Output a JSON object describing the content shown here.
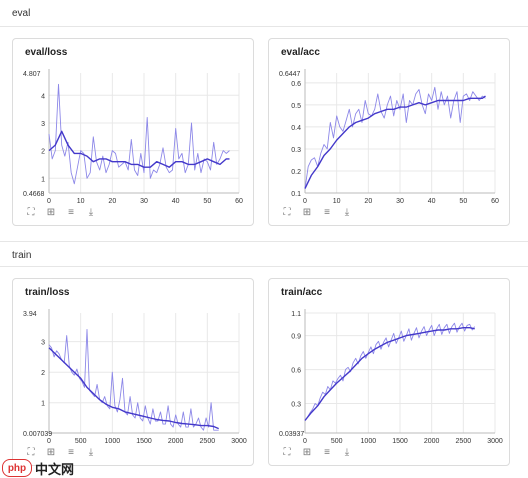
{
  "sections": [
    {
      "title": "eval"
    },
    {
      "title": "train"
    }
  ],
  "toolbar_icons": [
    "expand-icon",
    "fit-icon",
    "filter-icon",
    "download-icon"
  ],
  "watermark": {
    "logo_text": "php",
    "text": "中文网"
  },
  "colors": {
    "line": "#4338ca",
    "line_light": "#8d88e8",
    "grid": "#e8e8e8",
    "axis_text": "#333"
  },
  "charts": [
    {
      "title": "eval/loss",
      "chart_data": {
        "type": "line",
        "title": "eval/loss",
        "xlim": [
          0,
          60
        ],
        "ylim": [
          0.4668,
          4.807
        ],
        "x_ticks": [
          0,
          10,
          20,
          30,
          40,
          50,
          60
        ],
        "y_ticks": [
          1,
          2,
          3,
          4
        ],
        "y_extent_labels": [
          "0.4668",
          "4.807"
        ],
        "series": [
          {
            "role": "raw",
            "x": [
              0,
              1,
              2,
              3,
              4,
              5,
              6,
              7,
              8,
              9,
              10,
              11,
              12,
              13,
              14,
              15,
              16,
              17,
              18,
              19,
              20,
              21,
              22,
              23,
              24,
              25,
              26,
              27,
              28,
              29,
              30,
              31,
              32,
              33,
              34,
              35,
              36,
              37,
              38,
              39,
              40,
              41,
              42,
              43,
              43,
              44,
              45,
              46,
              47,
              48,
              49,
              50,
              51,
              52,
              53,
              54,
              55,
              56,
              57
            ],
            "y": [
              2.6,
              1.7,
              2.0,
              4.4,
              2.2,
              1.8,
              2.3,
              1.2,
              0.8,
              1.4,
              2.0,
              1.9,
              1.0,
              1.2,
              2.5,
              1.6,
              1.3,
              1.8,
              1.2,
              1.5,
              2.0,
              1.9,
              1.4,
              1.5,
              1.6,
              1.3,
              2.4,
              1.3,
              1.1,
              1.9,
              1.2,
              3.2,
              1.0,
              1.3,
              1.2,
              1.5,
              2.1,
              1.4,
              1.2,
              1.3,
              2.8,
              1.7,
              1.9,
              1.2,
              1.2,
              1.5,
              3.0,
              1.3,
              1.9,
              1.2,
              1.7,
              1.6,
              1.3,
              2.3,
              1.5,
              1.7,
              2.0,
              1.9,
              2.0
            ]
          },
          {
            "role": "smoothed",
            "x": [
              0,
              2,
              4,
              6,
              8,
              10,
              12,
              14,
              16,
              18,
              20,
              22,
              24,
              26,
              28,
              30,
              32,
              34,
              36,
              38,
              40,
              42,
              44,
              46,
              48,
              50,
              52,
              54,
              56,
              57
            ],
            "y": [
              2.0,
              2.2,
              2.7,
              2.2,
              1.9,
              1.9,
              1.8,
              1.6,
              1.7,
              1.7,
              1.6,
              1.6,
              1.6,
              1.5,
              1.5,
              1.4,
              1.4,
              1.6,
              1.5,
              1.4,
              1.6,
              1.6,
              1.5,
              1.5,
              1.6,
              1.7,
              1.6,
              1.5,
              1.7,
              1.7
            ]
          }
        ]
      }
    },
    {
      "title": "eval/acc",
      "chart_data": {
        "type": "line",
        "title": "eval/acc",
        "xlim": [
          0,
          60
        ],
        "ylim": [
          0.1,
          0.6447
        ],
        "x_ticks": [
          0,
          10,
          20,
          30,
          40,
          50,
          60
        ],
        "y_ticks": [
          0.1,
          0.2,
          0.3,
          0.4,
          0.5,
          0.6
        ],
        "y_extent_labels": [
          "0.6447"
        ],
        "series": [
          {
            "role": "raw",
            "x": [
              0,
              1,
              2,
              3,
              4,
              5,
              6,
              7,
              8,
              9,
              10,
              11,
              12,
              13,
              14,
              15,
              16,
              17,
              18,
              19,
              20,
              21,
              22,
              23,
              24,
              25,
              26,
              27,
              28,
              29,
              30,
              31,
              32,
              33,
              34,
              35,
              36,
              37,
              38,
              39,
              40,
              41,
              42,
              43,
              44,
              45,
              46,
              47,
              48,
              49,
              50,
              51,
              52,
              53,
              54,
              55,
              56,
              57
            ],
            "y": [
              0.12,
              0.22,
              0.25,
              0.26,
              0.22,
              0.28,
              0.32,
              0.3,
              0.42,
              0.35,
              0.45,
              0.4,
              0.38,
              0.43,
              0.48,
              0.4,
              0.46,
              0.48,
              0.42,
              0.52,
              0.46,
              0.45,
              0.48,
              0.55,
              0.47,
              0.44,
              0.5,
              0.54,
              0.45,
              0.52,
              0.48,
              0.55,
              0.42,
              0.52,
              0.5,
              0.55,
              0.57,
              0.5,
              0.46,
              0.55,
              0.52,
              0.58,
              0.48,
              0.56,
              0.5,
              0.54,
              0.44,
              0.52,
              0.56,
              0.42,
              0.54,
              0.55,
              0.52,
              0.56,
              0.54,
              0.52,
              0.54,
              0.53
            ]
          },
          {
            "role": "smoothed",
            "x": [
              0,
              2,
              4,
              6,
              8,
              10,
              12,
              14,
              16,
              18,
              20,
              22,
              24,
              26,
              28,
              30,
              32,
              34,
              36,
              38,
              40,
              42,
              44,
              46,
              48,
              50,
              52,
              54,
              56,
              57
            ],
            "y": [
              0.12,
              0.18,
              0.22,
              0.27,
              0.3,
              0.34,
              0.37,
              0.4,
              0.42,
              0.43,
              0.44,
              0.46,
              0.47,
              0.48,
              0.48,
              0.49,
              0.49,
              0.5,
              0.51,
              0.5,
              0.51,
              0.52,
              0.52,
              0.52,
              0.52,
              0.52,
              0.53,
              0.53,
              0.53,
              0.54
            ]
          }
        ]
      }
    },
    {
      "title": "train/loss",
      "chart_data": {
        "type": "line",
        "title": "train/loss",
        "xlim": [
          0,
          3000
        ],
        "ylim": [
          0.007039,
          3.94
        ],
        "x_ticks": [
          0,
          500,
          1000,
          1500,
          2000,
          2500,
          3000
        ],
        "y_ticks": [
          1,
          2,
          3
        ],
        "y_extent_labels": [
          "0.007039",
          "3.94"
        ],
        "series": [
          {
            "role": "raw",
            "x": [
              0,
              40,
              80,
              120,
              160,
              200,
              240,
              280,
              320,
              360,
              400,
              440,
              480,
              520,
              560,
              600,
              640,
              680,
              720,
              760,
              800,
              840,
              880,
              920,
              960,
              1000,
              1040,
              1080,
              1120,
              1160,
              1200,
              1240,
              1280,
              1320,
              1360,
              1400,
              1440,
              1480,
              1520,
              1560,
              1600,
              1640,
              1680,
              1720,
              1760,
              1800,
              1840,
              1880,
              1920,
              1960,
              2000,
              2040,
              2080,
              2120,
              2160,
              2200,
              2240,
              2280,
              2320,
              2360,
              2400,
              2440,
              2480,
              2520,
              2560,
              2600,
              2640,
              2680
            ],
            "y": [
              2.9,
              2.8,
              2.5,
              2.7,
              2.6,
              2.4,
              2.3,
              3.2,
              2.2,
              2.0,
              1.9,
              2.1,
              1.8,
              1.7,
              1.5,
              3.4,
              1.4,
              1.3,
              1.2,
              1.6,
              1.1,
              1.0,
              1.2,
              0.9,
              0.8,
              2.0,
              0.9,
              0.7,
              1.1,
              1.8,
              0.7,
              0.6,
              1.2,
              0.6,
              0.5,
              1.0,
              0.5,
              0.4,
              0.9,
              0.5,
              0.3,
              0.8,
              0.4,
              0.4,
              0.7,
              0.3,
              0.3,
              0.9,
              0.3,
              0.2,
              0.6,
              0.3,
              0.2,
              0.7,
              0.2,
              0.2,
              0.8,
              0.2,
              0.3,
              0.5,
              0.2,
              0.1,
              0.5,
              0.2,
              1.0,
              0.1,
              0.1,
              0.1
            ]
          },
          {
            "role": "smoothed",
            "x": [
              0,
              100,
              200,
              300,
              400,
              500,
              600,
              700,
              800,
              900,
              1000,
              1100,
              1200,
              1300,
              1400,
              1500,
              1600,
              1700,
              1800,
              1900,
              2000,
              2100,
              2200,
              2300,
              2400,
              2500,
              2600,
              2680
            ],
            "y": [
              2.8,
              2.6,
              2.4,
              2.2,
              2.0,
              1.8,
              1.5,
              1.3,
              1.1,
              0.95,
              0.85,
              0.8,
              0.7,
              0.65,
              0.6,
              0.55,
              0.5,
              0.45,
              0.42,
              0.4,
              0.35,
              0.32,
              0.3,
              0.28,
              0.25,
              0.25,
              0.22,
              0.15
            ]
          }
        ]
      }
    },
    {
      "title": "train/acc",
      "chart_data": {
        "type": "line",
        "title": "train/acc",
        "xlim": [
          0,
          3000
        ],
        "ylim": [
          0.03937,
          1.1
        ],
        "x_ticks": [
          0,
          500,
          1000,
          1500,
          2000,
          2500,
          3000
        ],
        "y_ticks": [
          0.3,
          0.6,
          0.9,
          1.1
        ],
        "y_extent_labels": [
          "0.03937"
        ],
        "series": [
          {
            "role": "raw",
            "x": [
              0,
              40,
              80,
              120,
              160,
              200,
              240,
              280,
              320,
              360,
              400,
              440,
              480,
              520,
              560,
              600,
              640,
              680,
              720,
              760,
              800,
              840,
              880,
              920,
              960,
              1000,
              1040,
              1080,
              1120,
              1160,
              1200,
              1240,
              1280,
              1320,
              1360,
              1400,
              1440,
              1480,
              1520,
              1560,
              1600,
              1640,
              1680,
              1720,
              1760,
              1800,
              1840,
              1880,
              1920,
              1960,
              2000,
              2040,
              2080,
              2120,
              2160,
              2200,
              2240,
              2280,
              2320,
              2360,
              2400,
              2440,
              2480,
              2520,
              2560,
              2600,
              2640,
              2680
            ],
            "y": [
              0.15,
              0.18,
              0.22,
              0.25,
              0.3,
              0.28,
              0.35,
              0.4,
              0.38,
              0.45,
              0.42,
              0.5,
              0.48,
              0.52,
              0.55,
              0.5,
              0.6,
              0.62,
              0.58,
              0.66,
              0.7,
              0.65,
              0.72,
              0.76,
              0.7,
              0.75,
              0.8,
              0.74,
              0.82,
              0.85,
              0.78,
              0.84,
              0.88,
              0.8,
              0.86,
              0.92,
              0.83,
              0.88,
              0.94,
              0.85,
              0.9,
              0.96,
              0.86,
              0.92,
              0.97,
              0.88,
              0.94,
              0.98,
              0.9,
              0.95,
              0.99,
              0.9,
              0.96,
              1.0,
              0.91,
              0.97,
              1.0,
              0.92,
              0.98,
              1.01,
              0.93,
              0.98,
              1.01,
              0.94,
              0.99,
              1.0,
              0.95,
              0.98
            ]
          },
          {
            "role": "smoothed",
            "x": [
              0,
              100,
              200,
              300,
              400,
              500,
              600,
              700,
              800,
              900,
              1000,
              1100,
              1200,
              1300,
              1400,
              1500,
              1600,
              1700,
              1800,
              1900,
              2000,
              2100,
              2200,
              2300,
              2400,
              2500,
              2600,
              2680
            ],
            "y": [
              0.15,
              0.22,
              0.28,
              0.36,
              0.42,
              0.48,
              0.53,
              0.58,
              0.64,
              0.7,
              0.74,
              0.78,
              0.81,
              0.84,
              0.86,
              0.88,
              0.9,
              0.91,
              0.92,
              0.93,
              0.94,
              0.95,
              0.95,
              0.96,
              0.96,
              0.97,
              0.97,
              0.96
            ]
          }
        ]
      }
    }
  ]
}
